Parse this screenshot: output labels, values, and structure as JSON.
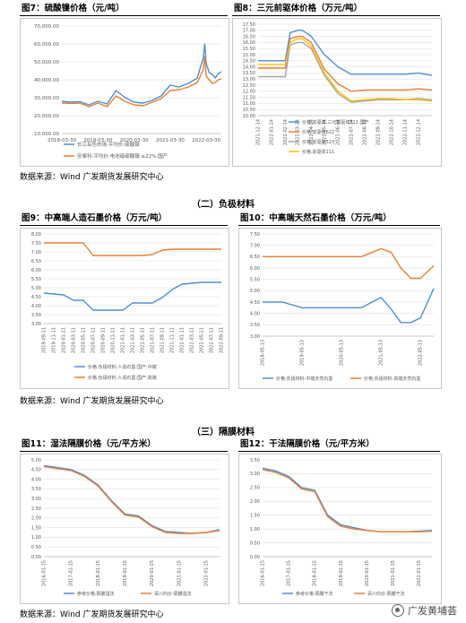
{
  "colors": {
    "blue": "#4a90d9",
    "orange": "#ed7d31",
    "gray": "#a5a5a5",
    "yellow": "#ffc000",
    "grid": "#d9d9d9"
  },
  "fig7": {
    "title": "图7：硫酸镍价格（元/吨）",
    "chart_data": {
      "type": "line",
      "x": [
        "2018-03-30",
        "2018-06-30",
        "2018-09-30",
        "2018-12-30",
        "2019-03-30",
        "2019-06-30",
        "2019-09-30",
        "2019-12-30",
        "2020-03-30",
        "2020-06-30",
        "2020-09-30",
        "2020-12-30",
        "2021-03-30",
        "2021-06-30",
        "2021-09-30",
        "2021-12-30",
        "2022-01-30",
        "2022-02-28",
        "2022-03-15",
        "2022-03-30",
        "2022-04-30",
        "2022-05-30",
        "2022-06-30",
        "2022-07-30",
        "2022-08-30"
      ],
      "xticks": [
        "2018-03-30",
        "2019-03-30",
        "2020-03-30",
        "2021-03-30",
        "2022-03-30"
      ],
      "yticks": [
        "10,000.00",
        "20,000.00",
        "30,000.00",
        "40,000.00",
        "50,000.00",
        "60,000.00",
        "70,000.00"
      ],
      "ylim": [
        10000,
        70000
      ],
      "series": [
        {
          "name": "长江有色市场:平均价:硫酸镍",
          "values": [
            28000,
            27500,
            27800,
            26000,
            28000,
            26500,
            34000,
            30000,
            27500,
            27000,
            28500,
            31000,
            37000,
            36000,
            38000,
            41000,
            47000,
            52000,
            60000,
            49000,
            44000,
            43000,
            41000,
            43500,
            44500
          ]
        },
        {
          "name": "安泰科:平均价:电池级硫酸镍:≥22%:国产",
          "values": [
            27000,
            26800,
            27000,
            25000,
            27000,
            25000,
            31000,
            28000,
            26000,
            25500,
            27500,
            29500,
            34000,
            34500,
            36000,
            38500,
            42000,
            46000,
            53000,
            42000,
            40000,
            38000,
            38500,
            40000,
            40500
          ]
        }
      ]
    }
  },
  "fig8": {
    "title": "图8：三元前驱体价格（万元/吨）",
    "chart_data": {
      "type": "line",
      "x": [
        "2021-12-14",
        "2022-01-14",
        "2022-02-14",
        "2022-02-25",
        "2022-03-14",
        "2022-03-25",
        "2022-04-14",
        "2022-05-14",
        "2022-06-14",
        "2022-07-14",
        "2022-08-14",
        "2022-09-14",
        "2022-10-14",
        "2022-11-14",
        "2022-12-14",
        "2023-01-14"
      ],
      "xticks": [
        "2021-12-14",
        "2022-01-14",
        "2022-02-14",
        "2022-03-14",
        "2022-04-14",
        "2022-05-14",
        "2022-06-14",
        "2022-07-14",
        "2022-08-14",
        "2022-09-14",
        "2022-10-14",
        "2022-11-14",
        "2022-12-14"
      ],
      "yticks": [
        "10.00",
        "10.50",
        "11.00",
        "11.50",
        "12.00",
        "12.50",
        "13.00",
        "13.50",
        "14.00",
        "14.50",
        "15.00",
        "15.50",
        "16.00",
        "16.50",
        "17.00",
        "17.50"
      ],
      "ylim": [
        10.0,
        17.5
      ],
      "series": [
        {
          "name": "价格:前驱体:三元前驱体811:国产",
          "values": [
            14.5,
            14.5,
            14.5,
            16.8,
            17.0,
            17.0,
            16.5,
            15.0,
            14.0,
            13.4,
            13.4,
            13.4,
            13.4,
            13.4,
            13.5,
            13.3
          ]
        },
        {
          "name": "价格:前驱体622",
          "values": [
            13.9,
            13.9,
            13.9,
            16.3,
            16.5,
            16.5,
            16.0,
            13.8,
            12.6,
            12.0,
            12.1,
            12.1,
            12.1,
            12.1,
            12.2,
            12.1
          ]
        },
        {
          "name": "价格:前驱体523",
          "values": [
            13.2,
            13.2,
            13.2,
            15.8,
            16.0,
            16.0,
            15.5,
            13.3,
            11.8,
            11.1,
            11.2,
            11.3,
            11.3,
            11.3,
            11.4,
            11.3
          ]
        },
        {
          "name": "价格:前驱体111",
          "values": [
            14.2,
            14.2,
            14.2,
            16.0,
            16.3,
            16.3,
            15.7,
            13.5,
            12.0,
            11.2,
            11.3,
            11.4,
            11.4,
            11.3,
            11.3,
            11.2
          ]
        }
      ]
    }
  },
  "source": "数据来源：Wind  广发期货发展研究中心",
  "section2": "（二）负极材料",
  "fig9": {
    "title": "图9：中高端人造石墨价格（万元/吨）",
    "chart_data": {
      "type": "line",
      "x": [
        "2019-09-11",
        "2019-11-11",
        "2020-01-11",
        "2020-03-11",
        "2020-05-11",
        "2020-07-11",
        "2020-09-11",
        "2020-11-11",
        "2021-01-11",
        "2021-03-11",
        "2021-05-11",
        "2021-07-11",
        "2021-09-11",
        "2021-11-11",
        "2022-01-11",
        "2022-03-11",
        "2022-05-11",
        "2022-07-11",
        "2022-09-11"
      ],
      "xticks": [
        "2019-09-11",
        "2019-11-11",
        "2020-01-11",
        "2020-03-11",
        "2020-05-11",
        "2020-07-11",
        "2020-09-11",
        "2020-11-11",
        "2021-01-11",
        "2021-03-11",
        "2021-05-11",
        "2021-07-11",
        "2021-09-11",
        "2021-11-11",
        "2022-01-11",
        "2022-03-11",
        "2022-05-11",
        "2022-07-11",
        "2022-09-11"
      ],
      "yticks": [
        "3.00",
        "3.50",
        "4.00",
        "4.50",
        "5.00",
        "5.50",
        "6.00",
        "6.50",
        "7.00",
        "7.50",
        "8.00"
      ],
      "ylim": [
        3.0,
        8.0
      ],
      "series": [
        {
          "name": "价格:负极材料:人造石墨:国产:中端",
          "values": [
            4.7,
            4.65,
            4.6,
            4.3,
            4.3,
            3.75,
            3.75,
            3.75,
            3.75,
            4.15,
            4.15,
            4.15,
            4.45,
            4.9,
            5.2,
            5.25,
            5.3,
            5.3,
            5.3
          ]
        },
        {
          "name": "价格:负极材料:人造石墨:国产:高端",
          "values": [
            7.5,
            7.5,
            7.5,
            7.5,
            7.5,
            6.8,
            6.8,
            6.8,
            6.8,
            6.8,
            6.8,
            6.85,
            7.1,
            7.15,
            7.15,
            7.15,
            7.15,
            7.15,
            7.15
          ]
        }
      ]
    }
  },
  "fig10": {
    "title": "图10：中高端天然石墨价格（万元/吨）",
    "chart_data": {
      "type": "line",
      "x": [
        "2018-05-13",
        "2018-11-13",
        "2019-05-13",
        "2019-11-13",
        "2020-05-13",
        "2020-11-13",
        "2021-05-13",
        "2021-08-13",
        "2021-11-13",
        "2022-02-13",
        "2022-05-13",
        "2022-09-13"
      ],
      "xticks": [
        "2018-05-13",
        "2019-05-13",
        "2020-05-13",
        "2021-05-13",
        "2022-05-13"
      ],
      "yticks": [
        "3.00",
        "3.50",
        "4.00",
        "4.50",
        "5.00",
        "5.50",
        "6.00",
        "6.50",
        "7.00",
        "7.50"
      ],
      "ylim": [
        3.0,
        7.5
      ],
      "series": [
        {
          "name": "价格:负极材料:中端天然石墨",
          "values": [
            4.5,
            4.5,
            4.25,
            4.25,
            4.25,
            4.25,
            4.7,
            4.2,
            3.6,
            3.6,
            3.8,
            5.1
          ]
        },
        {
          "name": "价格:负极材料:高端天然石墨",
          "values": [
            6.5,
            6.5,
            6.5,
            6.5,
            6.5,
            6.5,
            6.85,
            6.7,
            6.0,
            5.55,
            5.55,
            6.1
          ]
        }
      ]
    }
  },
  "section3": "（三）隔膜材料",
  "fig11": {
    "title": "图11：湿法隔膜价格（元/平方米）",
    "chart_data": {
      "type": "line",
      "x": [
        "2016-01-15",
        "2016-07-15",
        "2017-01-15",
        "2017-07-15",
        "2018-01-15",
        "2018-07-15",
        "2019-01-15",
        "2019-07-15",
        "2020-01-15",
        "2020-07-15",
        "2021-01-15",
        "2021-07-15",
        "2022-01-15",
        "2022-07-15"
      ],
      "xticks": [
        "2016-01-15",
        "2017-01-15",
        "2018-01-15",
        "2019-01-15",
        "2020-01-15",
        "2021-01-15",
        "2022-01-15"
      ],
      "yticks": [
        "0.00",
        "0.50",
        "1.00",
        "1.50",
        "2.00",
        "2.50",
        "3.00",
        "3.50",
        "4.00",
        "4.50",
        "5.00"
      ],
      "ylim": [
        0,
        5.0
      ],
      "series": [
        {
          "name": "参考价格:隔膜湿法",
          "values": [
            4.7,
            4.6,
            4.5,
            4.2,
            3.7,
            2.9,
            2.2,
            2.1,
            1.6,
            1.3,
            1.25,
            1.2,
            1.25,
            1.4
          ]
        },
        {
          "name": "百川均价:隔膜湿法",
          "values": [
            4.65,
            4.55,
            4.45,
            4.15,
            3.65,
            2.85,
            2.15,
            2.05,
            1.55,
            1.25,
            1.2,
            1.2,
            1.25,
            1.35
          ]
        }
      ]
    }
  },
  "fig12": {
    "title": "图12：干法隔膜价格（元/平方米）",
    "chart_data": {
      "type": "line",
      "x": [
        "2016-01-15",
        "2016-07-15",
        "2017-01-15",
        "2017-07-15",
        "2018-01-15",
        "2018-07-15",
        "2019-01-15",
        "2019-07-15",
        "2020-01-15",
        "2020-07-15",
        "2021-01-15",
        "2021-07-15",
        "2022-01-15",
        "2022-07-15"
      ],
      "xticks": [
        "2016-01-15",
        "2017-01-15",
        "2018-01-15",
        "2019-01-15",
        "2020-01-15",
        "2021-01-15",
        "2022-01-15"
      ],
      "yticks": [
        "0.00",
        "0.50",
        "1.00",
        "1.50",
        "2.00",
        "2.50",
        "3.00",
        "3.50"
      ],
      "ylim": [
        0,
        3.5
      ],
      "series": [
        {
          "name": "参考价格:隔膜干法",
          "values": [
            3.2,
            3.1,
            2.9,
            2.5,
            2.4,
            1.5,
            1.15,
            1.05,
            0.95,
            0.9,
            0.9,
            0.9,
            0.92,
            0.95
          ]
        },
        {
          "name": "百川均价:隔膜干法",
          "values": [
            3.15,
            3.05,
            2.85,
            2.45,
            2.35,
            1.45,
            1.1,
            1.0,
            0.95,
            0.9,
            0.9,
            0.9,
            0.9,
            0.92
          ]
        }
      ]
    }
  },
  "watermark": "广发黄埔荟"
}
